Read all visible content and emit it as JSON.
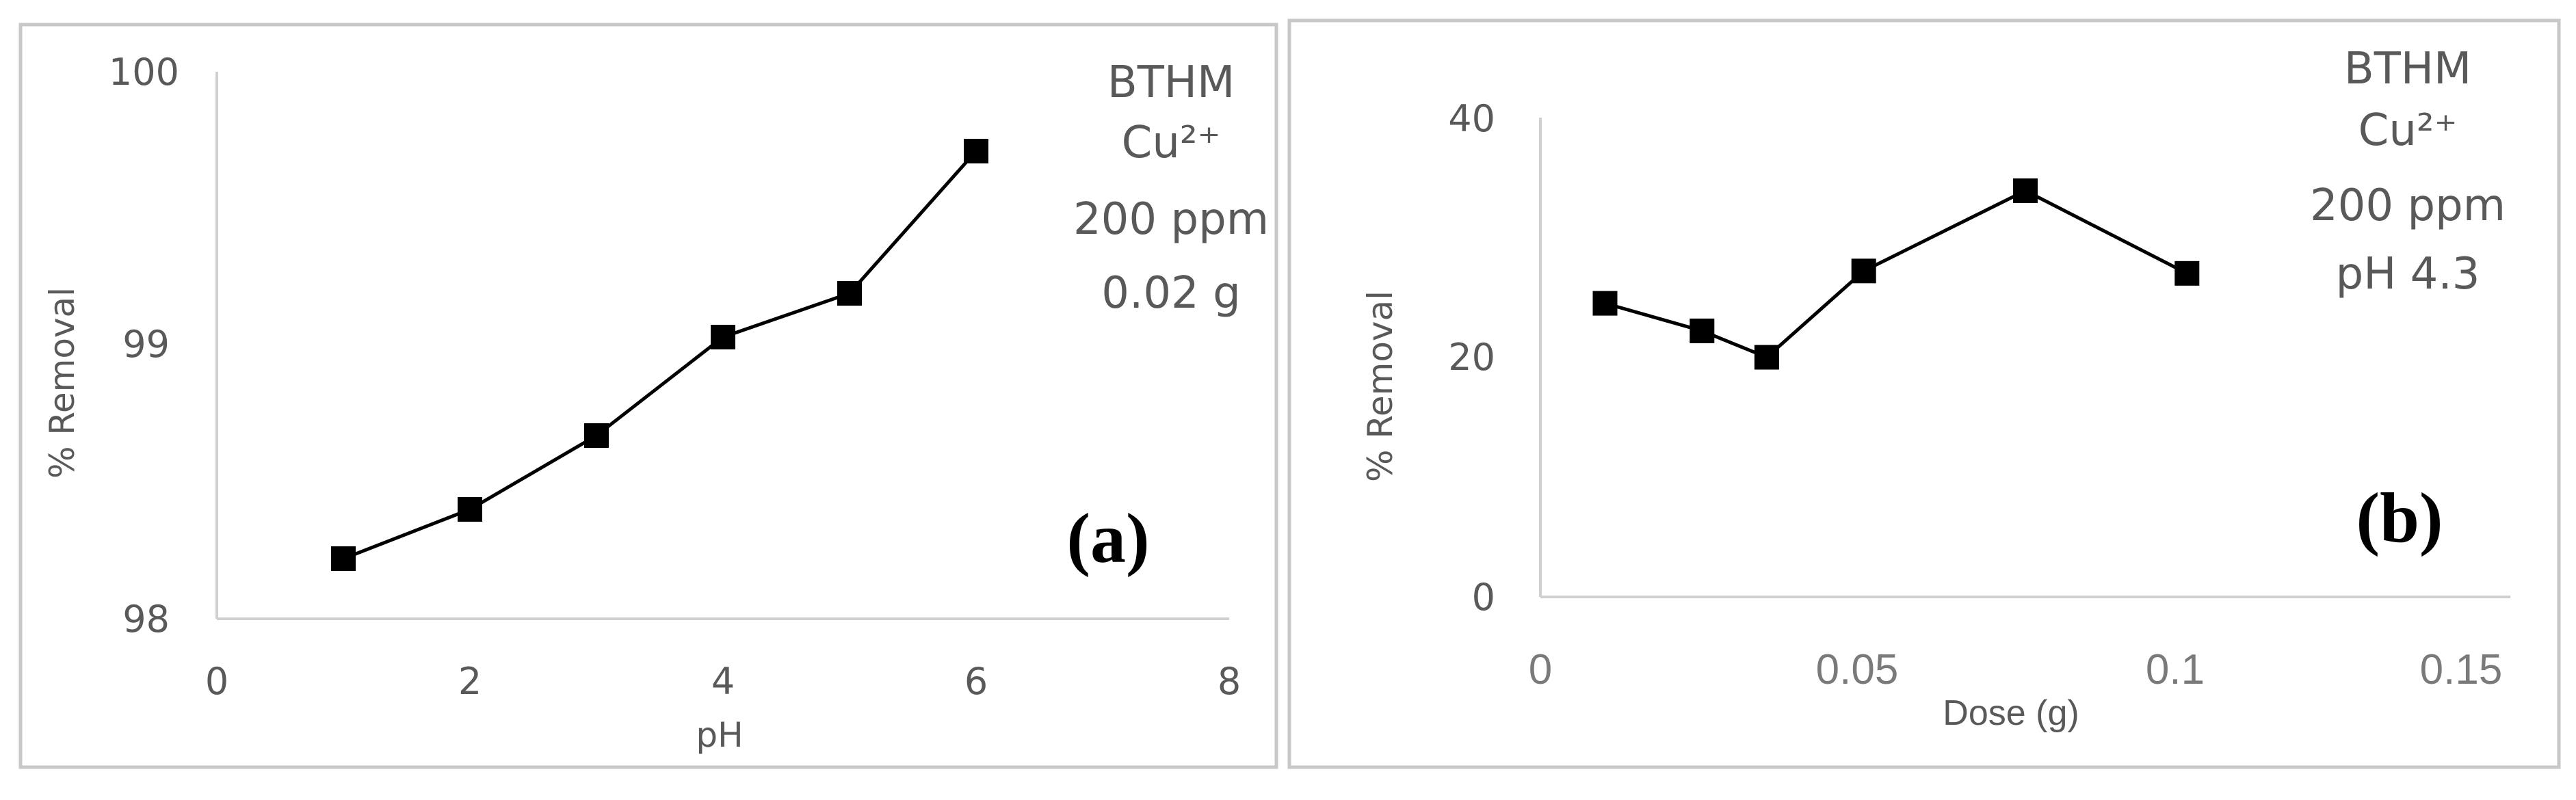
{
  "chart_data": [
    {
      "type": "line",
      "panel_label": "(a)",
      "xlabel": "pH",
      "ylabel": "% Removal",
      "xlim": [
        0,
        8
      ],
      "ylim": [
        98,
        100
      ],
      "xticks": [
        "0",
        "2",
        "4",
        "6",
        "8"
      ],
      "yticks": [
        "98",
        "99",
        "100"
      ],
      "annotation": [
        "BTHM",
        "Cu²⁺",
        "200 ppm",
        "0.02 g"
      ],
      "series": [
        {
          "x": [
            1,
            2,
            3,
            4,
            5,
            6
          ],
          "values": [
            98.22,
            98.4,
            98.67,
            99.03,
            99.19,
            99.71
          ]
        }
      ]
    },
    {
      "type": "line",
      "panel_label": "(b)",
      "xlabel": "Dose (g)",
      "ylabel": "% Removal",
      "xlim": [
        0,
        0.15
      ],
      "ylim": [
        0,
        40
      ],
      "xticks": [
        "0",
        "0.05",
        "0.1",
        "0.15"
      ],
      "yticks": [
        "0",
        "20",
        "40"
      ],
      "annotation": [
        "BTHM",
        "Cu²⁺",
        "200 ppm",
        "pH 4.3"
      ],
      "series": [
        {
          "x": [
            0.01,
            0.025,
            0.035,
            0.05,
            0.075,
            0.1
          ],
          "values": [
            24.5,
            22.2,
            20.0,
            27.2,
            33.9,
            27.0
          ]
        }
      ]
    }
  ]
}
